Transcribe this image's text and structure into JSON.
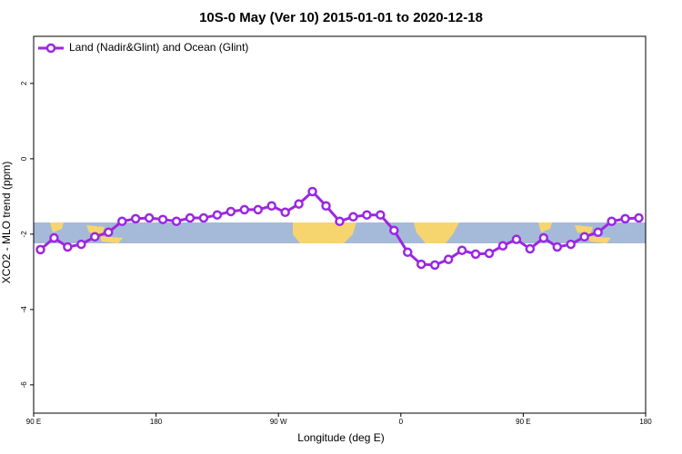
{
  "chart_data": {
    "type": "line",
    "title": "10S-0 May (Ver 10)   2015-01-01 to 2020-12-18",
    "xlabel": "Longitude (deg E)",
    "ylabel": "XCO2 - MLO trend (ppm)",
    "x": [
      95,
      105,
      115,
      125,
      135,
      145,
      155,
      165,
      175,
      185,
      195,
      205,
      215,
      225,
      235,
      245,
      255,
      265,
      275,
      285,
      295,
      305,
      315,
      325,
      335,
      345,
      355,
      365,
      375,
      385,
      395,
      405,
      415,
      425,
      435,
      445,
      455,
      465,
      475,
      485,
      495,
      505,
      515,
      525,
      535
    ],
    "series": [
      {
        "name": "Land (Nadir&Glint) and Ocean (Glint)",
        "color": "#9b27e0",
        "values": [
          -2.41,
          -2.1,
          -2.34,
          -2.27,
          -2.07,
          -1.95,
          -1.66,
          -1.59,
          -1.57,
          -1.61,
          -1.66,
          -1.57,
          -1.57,
          -1.49,
          -1.4,
          -1.35,
          -1.35,
          -1.25,
          -1.42,
          -1.2,
          -0.87,
          -1.25,
          -1.66,
          -1.54,
          -1.49,
          -1.49,
          -1.9,
          -2.48,
          -2.8,
          -2.82,
          -2.67,
          -2.43,
          -2.53,
          -2.51,
          -2.31,
          -2.14,
          -2.39,
          -2.1,
          -2.34,
          -2.27,
          -2.07,
          -1.95,
          -1.66,
          -1.59,
          -1.57
        ]
      }
    ],
    "xlim": [
      90,
      540
    ],
    "xticks": [
      {
        "value": 90,
        "label": "90 E"
      },
      {
        "value": 180,
        "label": "180"
      },
      {
        "value": 270,
        "label": "90 W"
      },
      {
        "value": 360,
        "label": "0"
      },
      {
        "value": 450,
        "label": "90 E"
      },
      {
        "value": 540,
        "label": "180"
      }
    ],
    "ylim": [
      -6.75,
      3.25
    ],
    "yticks": [
      -6,
      -4,
      -2,
      0,
      2
    ],
    "legend": "top-left"
  }
}
